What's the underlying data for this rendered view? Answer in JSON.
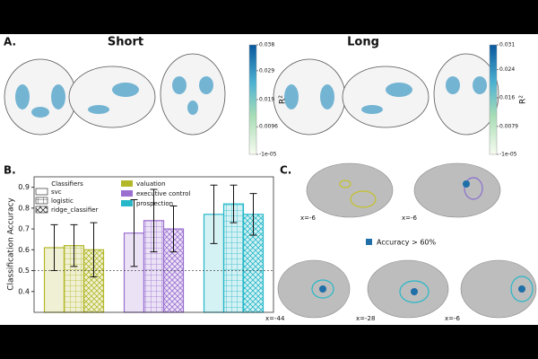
{
  "panel_a": {
    "label": "A.",
    "conditions": [
      "Short",
      "Long"
    ],
    "colorbars": [
      {
        "title": "R²",
        "clim": [
          -1e-05,
          0.038
        ],
        "ticks": [
          0.038,
          0.029,
          0.019,
          0.0096,
          {
            "value": -1e-05,
            "label": "-1e-05"
          }
        ]
      },
      {
        "title": "R²",
        "clim": [
          -1e-05,
          0.031
        ],
        "ticks": [
          0.031,
          0.024,
          0.016,
          0.0079,
          {
            "value": -1e-05,
            "label": "-1e-05"
          }
        ]
      }
    ]
  },
  "chart_data": {
    "type": "bar",
    "label": "B.",
    "ylabel": "Classification Accuracy",
    "ylim": [
      0.3,
      0.95
    ],
    "yticks": [
      0.4,
      0.5,
      0.6,
      0.7,
      0.8,
      0.9
    ],
    "chance_line": 0.5,
    "classifiers": {
      "title": "Classifiers",
      "names": [
        "svc",
        "logistic",
        "ridge_classifier"
      ],
      "hatches": [
        "none",
        "grid",
        "cross"
      ]
    },
    "series": [
      {
        "name": "valuation",
        "color": "#b3b829",
        "values": [
          0.61,
          0.62,
          0.6
        ],
        "errors": [
          0.11,
          0.1,
          0.13
        ]
      },
      {
        "name": "executive control",
        "color": "#9a6fd0",
        "values": [
          0.68,
          0.74,
          0.7
        ],
        "errors": [
          0.16,
          0.15,
          0.11
        ]
      },
      {
        "name": "prospection",
        "color": "#26b8c8",
        "values": [
          0.77,
          0.82,
          0.77
        ],
        "errors": [
          0.14,
          0.09,
          0.1
        ]
      }
    ]
  },
  "panel_c": {
    "label": "C.",
    "legend": "Accuracy > 60%",
    "slices": [
      "x=-6",
      "x=-6",
      "x=-44",
      "x=-28",
      "x=-6"
    ]
  }
}
